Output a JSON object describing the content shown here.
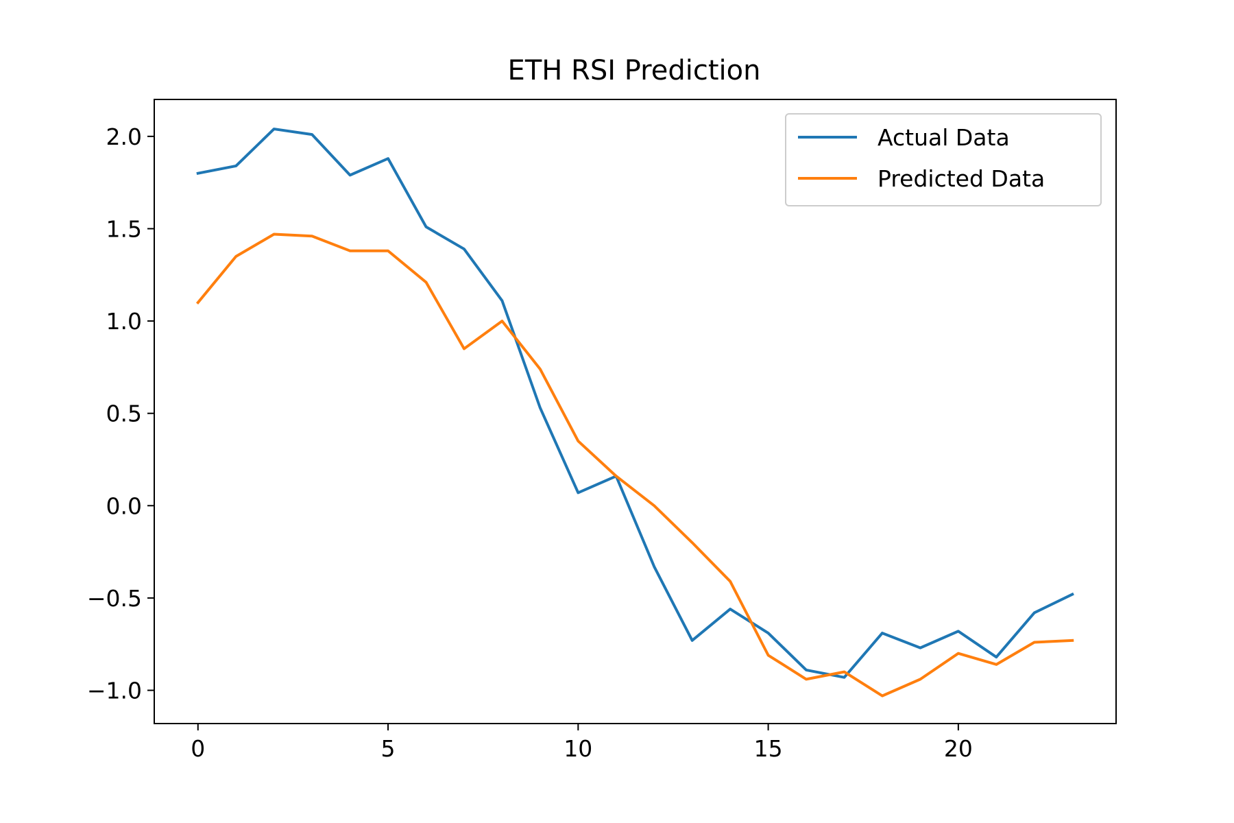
{
  "chart_data": {
    "type": "line",
    "title": "ETH RSI Prediction",
    "xlabel": "",
    "ylabel": "",
    "xlim": [
      -1.15,
      24.15
    ],
    "ylim": [
      -1.18,
      2.2
    ],
    "x": [
      0,
      1,
      2,
      3,
      4,
      5,
      6,
      7,
      8,
      9,
      10,
      11,
      12,
      13,
      14,
      15,
      16,
      17,
      18,
      19,
      20,
      21,
      22,
      23
    ],
    "xticks": [
      0,
      5,
      10,
      15,
      20
    ],
    "xtick_labels": [
      "0",
      "5",
      "10",
      "15",
      "20"
    ],
    "yticks": [
      -1.0,
      -0.5,
      0.0,
      0.5,
      1.0,
      1.5,
      2.0
    ],
    "ytick_labels": [
      "−1.0",
      "−0.5",
      "0.0",
      "0.5",
      "1.0",
      "1.5",
      "2.0"
    ],
    "grid": false,
    "legend_position": "top-right",
    "series": [
      {
        "name": "Actual Data",
        "color": "#1f77b4",
        "values": [
          1.8,
          1.84,
          2.04,
          2.01,
          1.79,
          1.88,
          1.51,
          1.39,
          1.11,
          0.53,
          0.07,
          0.16,
          -0.33,
          -0.73,
          -0.56,
          -0.69,
          -0.89,
          -0.93,
          -0.69,
          -0.77,
          -0.68,
          -0.82,
          -0.58,
          -0.48
        ]
      },
      {
        "name": "Predicted Data",
        "color": "#ff7f0e",
        "values": [
          1.1,
          1.35,
          1.47,
          1.46,
          1.38,
          1.38,
          1.21,
          0.85,
          1.0,
          0.74,
          0.35,
          0.16,
          0.0,
          -0.2,
          -0.41,
          -0.81,
          -0.94,
          -0.9,
          -1.03,
          -0.94,
          -0.8,
          -0.86,
          -0.74,
          -0.73
        ]
      }
    ]
  }
}
